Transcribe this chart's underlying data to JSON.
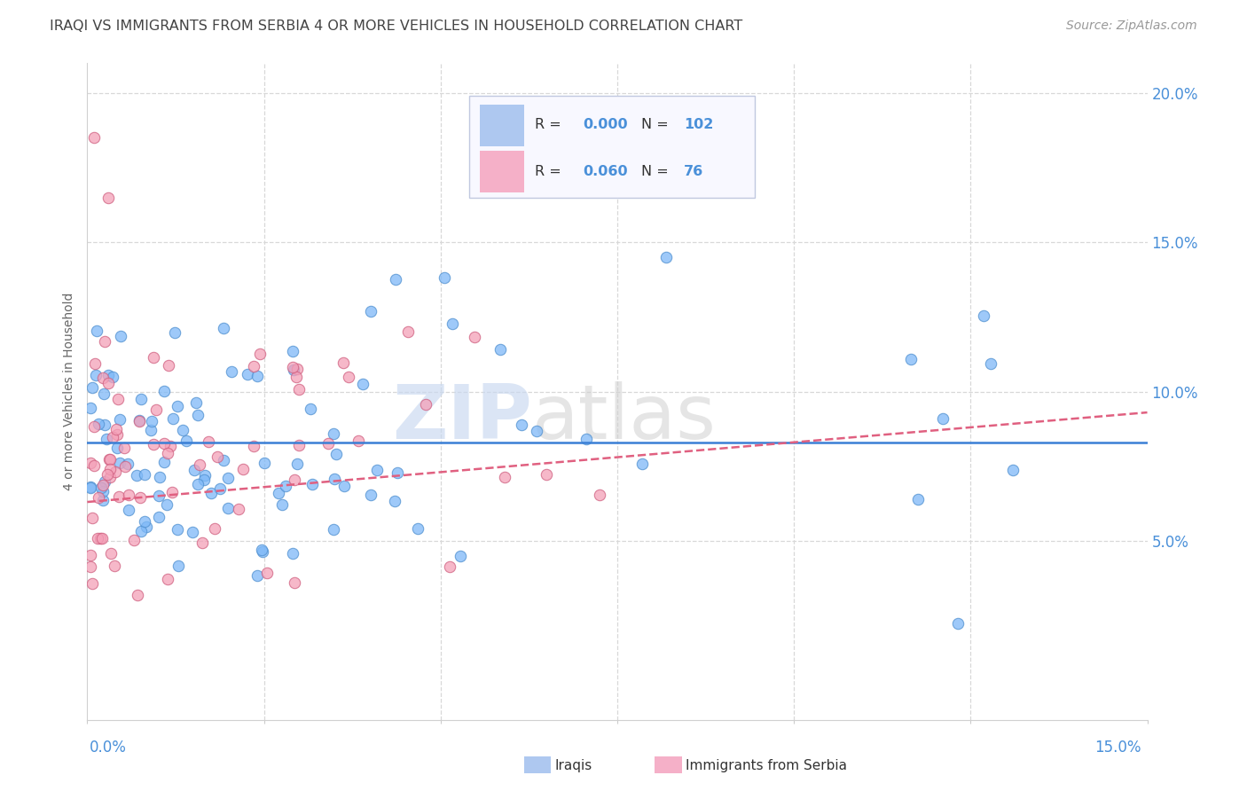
{
  "title": "IRAQI VS IMMIGRANTS FROM SERBIA 4 OR MORE VEHICLES IN HOUSEHOLD CORRELATION CHART",
  "source": "Source: ZipAtlas.com",
  "ylabel": "4 or more Vehicles in Household",
  "watermark_zip": "ZIP",
  "watermark_atlas": "atlas",
  "xlim": [
    0.0,
    0.15
  ],
  "ylim": [
    -0.01,
    0.21
  ],
  "ytick_vals": [
    0.05,
    0.1,
    0.15,
    0.2
  ],
  "ytick_labels": [
    "5.0%",
    "10.0%",
    "15.0%",
    "20.0%"
  ],
  "iraqis_color": "#7eb8f7",
  "serbia_color": "#f4a0b8",
  "iraqi_edge_color": "#5090d0",
  "serbia_edge_color": "#d06080",
  "trend_iraqi_color": "#3a7fd5",
  "trend_serbia_color": "#e06080",
  "background_color": "#ffffff",
  "grid_color": "#d8d8d8",
  "title_color": "#444444",
  "axis_label_color": "#4a90d9",
  "legend_box_color": "#f0f0ff",
  "legend_border_color": "#b0b8d0",
  "iraqi_trend_y": 0.083,
  "serbia_trend_start_y": 0.063,
  "serbia_trend_end_y": 0.093,
  "iraqi_marker_size": 80,
  "serbia_marker_size": 80
}
